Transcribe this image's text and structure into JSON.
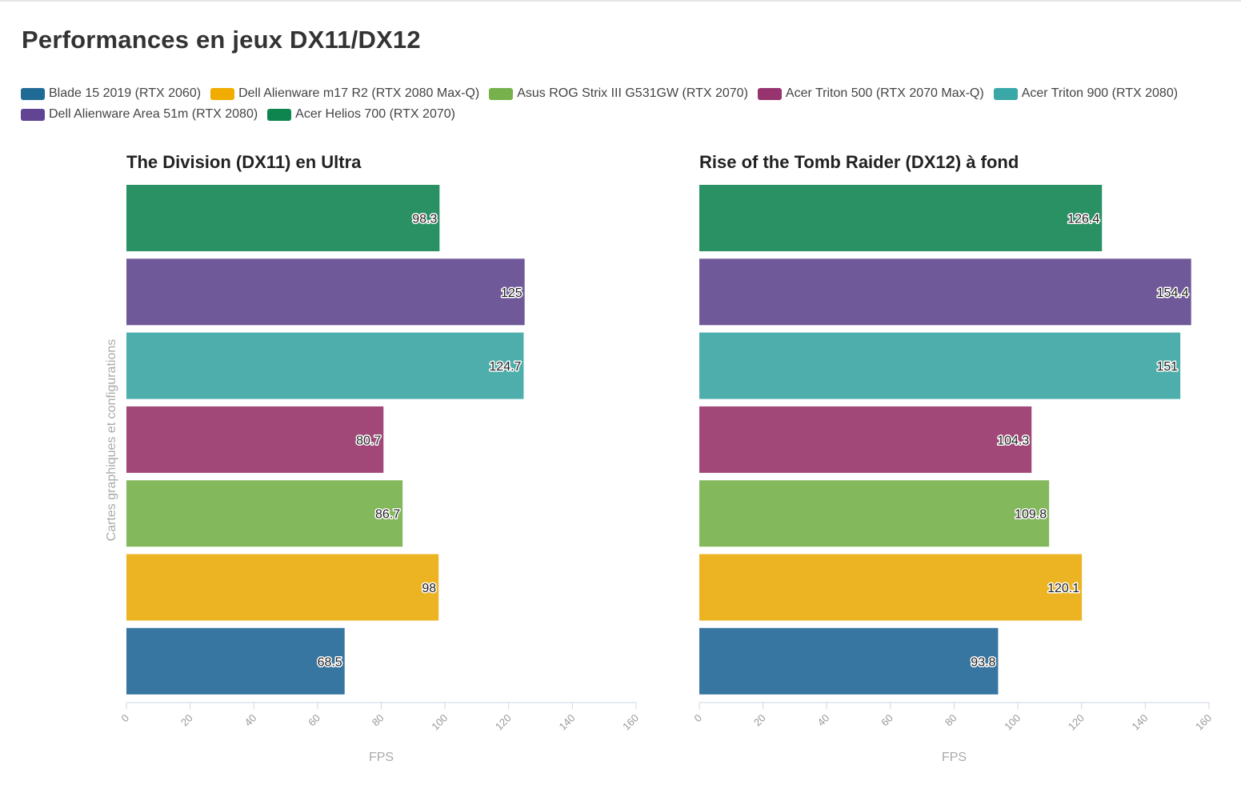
{
  "title": "Performances en jeux DX11/DX12",
  "legend": [
    {
      "label": "Blade 15 2019 (RTX 2060)",
      "color": "#1f6b96"
    },
    {
      "label": "Dell Alienware m17 R2 (RTX 2080 Max-Q)",
      "color": "#f0ac00"
    },
    {
      "label": "Asus ROG Strix III G531GW (RTX 2070)",
      "color": "#77b14c"
    },
    {
      "label": "Acer Triton 500 (RTX 2070 Max-Q)",
      "color": "#97336e"
    },
    {
      "label": "Acer Triton 900 (RTX 2080)",
      "color": "#3aa8a6"
    },
    {
      "label": "Dell Alienware Area 51m (RTX 2080)",
      "color": "#614493"
    },
    {
      "label": "Acer Helios 700 (RTX 2070)",
      "color": "#0e854f"
    }
  ],
  "chart_data": [
    {
      "type": "bar",
      "orientation": "horizontal",
      "title": "The Division (DX11) en Ultra",
      "xlabel": "FPS",
      "ylabel": "Cartes graphiques et configurations",
      "xlim": [
        0,
        160
      ],
      "xticks": [
        "0",
        "20",
        "40",
        "60",
        "80",
        "100",
        "120",
        "140",
        "160"
      ],
      "categories": [
        "Acer Helios 700 (RTX 2070)",
        "Dell Alienware Area 51m (RTX 2080)",
        "Acer Triton 900 (RTX 2080)",
        "Acer Triton 500 (RTX 2070 Max-Q)",
        "Asus ROG Strix III G531GW (RTX 2070)",
        "Dell Alienware m17 R2 (RTX 2080 Max-Q)",
        "Blade 15 2019 (RTX 2060)"
      ],
      "values": [
        98.3,
        125,
        124.7,
        80.7,
        86.7,
        98,
        68.5
      ],
      "labels": [
        "98.3",
        "125",
        "124.7",
        "80.7",
        "86.7",
        "98",
        "68.5"
      ],
      "colors": [
        "#2a9164",
        "#6f5999",
        "#4daeac",
        "#a14878",
        "#84b85c",
        "#ecb323",
        "#3676a1"
      ]
    },
    {
      "type": "bar",
      "orientation": "horizontal",
      "title": "Rise of the Tomb Raider (DX12) à fond",
      "xlabel": "FPS",
      "ylabel": "",
      "xlim": [
        0,
        160
      ],
      "xticks": [
        "0",
        "20",
        "40",
        "60",
        "80",
        "100",
        "120",
        "140",
        "160"
      ],
      "categories": [
        "Acer Helios 700 (RTX 2070)",
        "Dell Alienware Area 51m (RTX 2080)",
        "Acer Triton 900 (RTX 2080)",
        "Acer Triton 500 (RTX 2070 Max-Q)",
        "Asus ROG Strix III G531GW (RTX 2070)",
        "Dell Alienware m17 R2 (RTX 2080 Max-Q)",
        "Blade 15 2019 (RTX 2060)"
      ],
      "values": [
        126.4,
        154.4,
        151,
        104.3,
        109.8,
        120.1,
        93.8
      ],
      "labels": [
        "126.4",
        "154.4",
        "151",
        "104.3",
        "109.8",
        "120.1",
        "93.8"
      ],
      "colors": [
        "#2a9164",
        "#6f5999",
        "#4daeac",
        "#a14878",
        "#84b85c",
        "#ecb323",
        "#3676a1"
      ]
    }
  ]
}
